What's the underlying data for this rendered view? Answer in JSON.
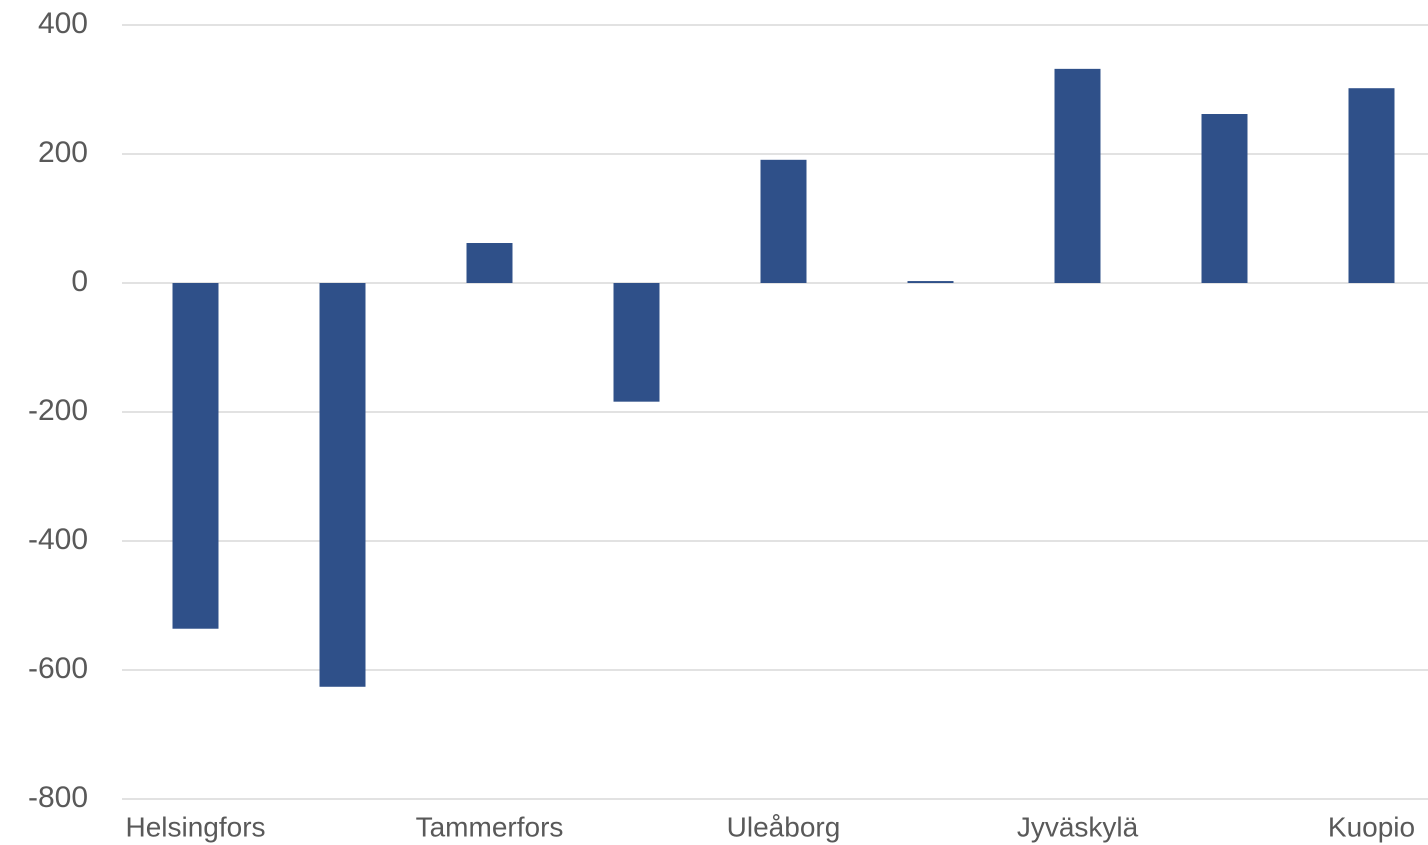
{
  "chart_data": {
    "type": "bar",
    "categories": [
      "Helsingfors",
      null,
      "Tammerfors",
      null,
      "Uleåborg",
      null,
      "Jyväskylä",
      null,
      "Kuopio"
    ],
    "values": [
      -536,
      -626,
      62,
      -184,
      191,
      3,
      332,
      262,
      302
    ],
    "color": "#2f5089",
    "ylim": [
      -800,
      400
    ],
    "yticks": [
      -800,
      -600,
      -400,
      -200,
      0,
      200,
      400
    ],
    "grid": true
  }
}
